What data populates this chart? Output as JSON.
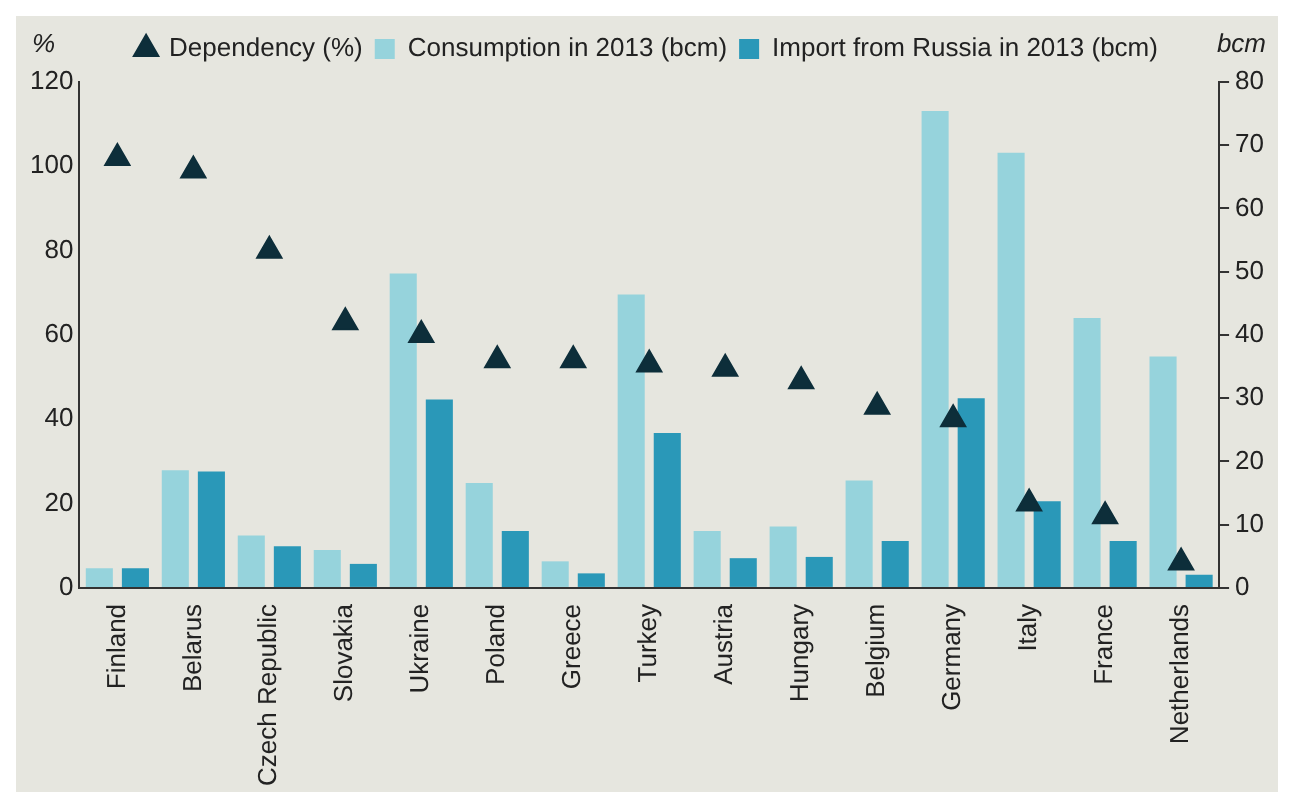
{
  "chart_data": {
    "type": "bar",
    "ylabel": "%",
    "y2label": "bcm",
    "categories": [
      "Finland",
      "Belarus",
      "Czech Republic",
      "Slovakia",
      "Ukraine",
      "Poland",
      "Greece",
      "Turkey",
      "Austria",
      "Hungary",
      "Belgium",
      "Germany",
      "Italy",
      "France",
      "Netherlands"
    ],
    "series": [
      {
        "name": "Consumption in 2013 (bcm)",
        "color": "#96d3dc",
        "axis": "y2",
        "values": [
          3.1,
          18.6,
          8.3,
          6.0,
          49.7,
          16.6,
          4.2,
          46.4,
          9.0,
          9.7,
          17.0,
          75.4,
          68.8,
          42.7,
          36.6
        ]
      },
      {
        "name": "Import from Russia in 2013 (bcm)",
        "color": "#2a98b8",
        "axis": "y2",
        "values": [
          3.1,
          18.4,
          6.6,
          3.8,
          29.8,
          9.0,
          2.3,
          24.5,
          4.7,
          4.9,
          7.4,
          30.0,
          13.7,
          7.4,
          2.1
        ]
      },
      {
        "name": "Dependency (%)",
        "type": "scatter",
        "marker": "triangle",
        "color": "#0d2e3a",
        "axis": "y",
        "values": [
          102,
          99,
          80,
          63,
          60,
          54,
          54,
          53,
          52,
          49,
          43,
          40,
          20,
          17,
          6
        ]
      }
    ],
    "ylim": [
      0,
      120
    ],
    "yticks": [
      0,
      20,
      40,
      60,
      80,
      100,
      120
    ],
    "y2lim": [
      0,
      80
    ],
    "y2ticks": [
      0,
      10,
      20,
      30,
      40,
      50,
      60,
      70,
      80
    ],
    "grid": false,
    "legend": "top"
  }
}
